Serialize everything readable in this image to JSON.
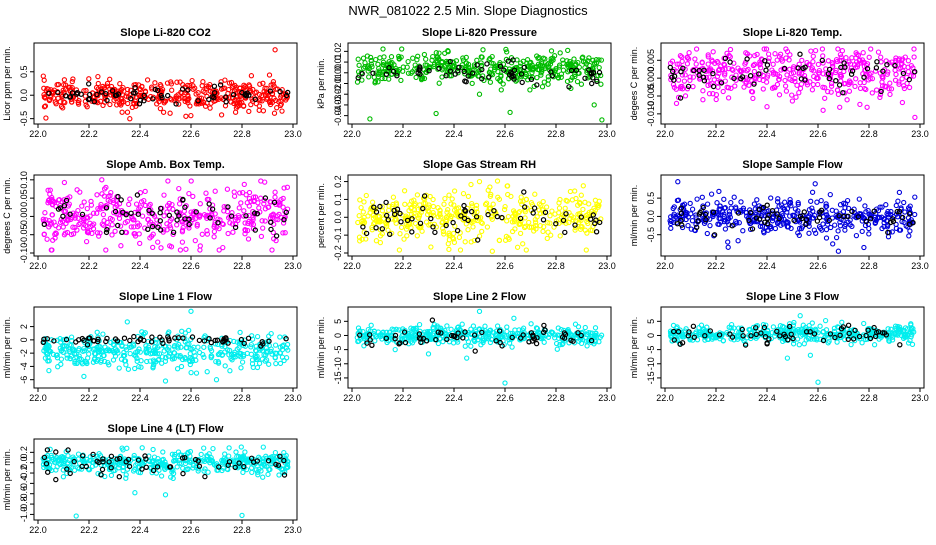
{
  "page_title": "NWR_081022  2.5 Min. Slope Diagnostics",
  "chart_data": [
    {
      "type": "scatter",
      "title": "Slope Li-820 CO2",
      "ylabel": "Licor ppm per min.",
      "xlim": [
        22.0,
        23.0
      ],
      "xticks": [
        "22.0",
        "22.2",
        "22.4",
        "22.6",
        "22.8",
        "23.0"
      ],
      "ylim": [
        -0.55,
        1.05
      ],
      "yticks": [
        -0.5,
        0.0,
        0.5
      ],
      "ytick_labels": [
        "-0.5",
        "0.0",
        "0.5"
      ],
      "color": "#ff0000",
      "center": 0.0,
      "spread": 0.15,
      "n": 420,
      "dark_center": 0.0,
      "dark_spread": 0.1,
      "dark_n": 60,
      "outliers": [
        [
          22.93,
          0.97
        ],
        [
          22.36,
          -0.5
        ],
        [
          22.58,
          -0.45
        ],
        [
          22.72,
          -0.42
        ]
      ]
    },
    {
      "type": "scatter",
      "title": "Slope Li-820 Pressure",
      "ylabel": "kPa per min.",
      "xlim": [
        22.0,
        23.0
      ],
      "xticks": [
        "22.0",
        "22.2",
        "22.4",
        "22.6",
        "22.8",
        "23.0"
      ],
      "ylim": [
        -0.045,
        0.025
      ],
      "yticks": [
        -0.04,
        -0.03,
        -0.02,
        -0.01,
        0.0,
        0.01,
        0.02
      ],
      "ytick_labels": [
        "-0.04",
        "-0.03",
        "-0.02",
        "-0.01",
        "0.00",
        "0.01",
        "0.02"
      ],
      "color": "#00bb00",
      "center": 0.004,
      "spread": 0.007,
      "n": 420,
      "dark_center": 0.0,
      "dark_spread": 0.005,
      "dark_n": 60,
      "outliers": [
        [
          22.07,
          -0.043
        ],
        [
          22.33,
          -0.038
        ],
        [
          22.62,
          -0.037
        ],
        [
          22.98,
          -0.044
        ],
        [
          22.95,
          -0.03
        ],
        [
          22.5,
          -0.02
        ]
      ]
    },
    {
      "type": "scatter",
      "title": "Slope Li-820 Temp.",
      "ylabel": "degees C per min.",
      "xlim": [
        22.0,
        23.0
      ],
      "xticks": [
        "22.0",
        "22.2",
        "22.4",
        "22.6",
        "22.8",
        "23.0"
      ],
      "ylim": [
        -0.012,
        0.009
      ],
      "yticks": [
        -0.01,
        -0.005,
        0.0,
        0.005
      ],
      "ytick_labels": [
        "-0.010",
        "-0.005",
        "0.000",
        "0.005"
      ],
      "color": "#ff00ff",
      "center": 0.001,
      "spread": 0.0035,
      "n": 420,
      "dark_center": 0.0015,
      "dark_spread": 0.0025,
      "dark_n": 60,
      "outliers": [
        [
          22.98,
          -0.011
        ],
        [
          22.62,
          -0.009
        ],
        [
          22.4,
          -0.008
        ]
      ]
    },
    {
      "type": "scatter",
      "title": "Slope Amb. Box Temp.",
      "ylabel": "degrees C per min.",
      "xlim": [
        22.0,
        23.0
      ],
      "xticks": [
        "22.0",
        "22.2",
        "22.4",
        "22.6",
        "22.8",
        "23.0"
      ],
      "ylim": [
        -0.1,
        0.105
      ],
      "yticks": [
        -0.1,
        -0.05,
        0.0,
        0.05,
        0.1
      ],
      "ytick_labels": [
        "-0.10",
        "-0.05",
        "0.00",
        "0.05",
        "0.10"
      ],
      "color": "#ff00ff",
      "center": 0.0,
      "spread": 0.04,
      "n": 420,
      "dark_center": 0.0,
      "dark_spread": 0.03,
      "dark_n": 60,
      "outliers": [
        [
          22.25,
          0.1
        ],
        [
          22.58,
          -0.09
        ]
      ]
    },
    {
      "type": "scatter",
      "title": "Slope Gas Stream RH",
      "ylabel": "percent per min.",
      "xlim": [
        22.0,
        23.0
      ],
      "xticks": [
        "22.0",
        "22.2",
        "22.4",
        "22.6",
        "22.8",
        "23.0"
      ],
      "ylim": [
        -0.2,
        0.22
      ],
      "yticks": [
        -0.2,
        -0.1,
        0.0,
        0.1,
        0.2
      ],
      "ytick_labels": [
        "-0.2",
        "-0.1",
        "0.0",
        "0.1",
        "0.2"
      ],
      "color": "#ffff00",
      "center": 0.0,
      "spread": 0.07,
      "n": 420,
      "dark_center": 0.0,
      "dark_spread": 0.05,
      "dark_n": 60,
      "outliers": [
        [
          22.5,
          0.2
        ],
        [
          22.38,
          -0.18
        ],
        [
          22.55,
          -0.19
        ]
      ]
    },
    {
      "type": "scatter",
      "title": "Slope Sample Flow",
      "ylabel": "ml/min per min.",
      "xlim": [
        22.0,
        23.0
      ],
      "xticks": [
        "22.0",
        "22.2",
        "22.4",
        "22.6",
        "22.8",
        "23.0"
      ],
      "ylim": [
        -1.0,
        1.05
      ],
      "yticks": [
        -0.5,
        0.0,
        0.5
      ],
      "ytick_labels": [
        "-0.5",
        "0.0",
        "0.5"
      ],
      "color": "#0000dd",
      "center": 0.0,
      "spread": 0.25,
      "n": 420,
      "dark_center": -0.05,
      "dark_spread": 0.18,
      "dark_n": 60,
      "outliers": [
        [
          22.05,
          0.95
        ],
        [
          22.78,
          -0.85
        ],
        [
          22.68,
          -0.95
        ]
      ]
    },
    {
      "type": "scatter",
      "title": "Slope Line 1 Flow",
      "ylabel": "ml/min per min.",
      "xlim": [
        22.0,
        23.0
      ],
      "xticks": [
        "22.0",
        "22.2",
        "22.4",
        "22.6",
        "22.8",
        "23.0"
      ],
      "ylim": [
        -6.8,
        4.5
      ],
      "yticks": [
        -6,
        -4,
        -2,
        0,
        2
      ],
      "ytick_labels": [
        "-6",
        "-4",
        "-2",
        "0",
        "2"
      ],
      "color": "#00eeee",
      "center": -1.8,
      "spread": 1.3,
      "n": 420,
      "dark_center": 0.0,
      "dark_spread": 0.3,
      "dark_n": 60,
      "outliers": [
        [
          22.6,
          4.3
        ],
        [
          22.35,
          2.7
        ],
        [
          22.18,
          -5.5
        ],
        [
          22.5,
          -6.2
        ],
        [
          22.7,
          -6.0
        ]
      ]
    },
    {
      "type": "scatter",
      "title": "Slope Line 2 Flow",
      "ylabel": "ml/min per min.",
      "xlim": [
        22.0,
        23.0
      ],
      "xticks": [
        "22.0",
        "22.2",
        "22.4",
        "22.6",
        "22.8",
        "23.0"
      ],
      "ylim": [
        -17.5,
        9
      ],
      "yticks": [
        -15,
        -10,
        -5,
        0,
        5
      ],
      "ytick_labels": [
        "-15",
        "-10",
        "-5",
        "0",
        "5"
      ],
      "color": "#00eeee",
      "center": 0.0,
      "spread": 1.6,
      "n": 420,
      "dark_center": -0.5,
      "dark_spread": 1.8,
      "dark_n": 60,
      "outliers": [
        [
          22.5,
          8.5
        ],
        [
          22.6,
          -16.8
        ],
        [
          22.3,
          -6.5
        ],
        [
          22.45,
          -8
        ]
      ]
    },
    {
      "type": "scatter",
      "title": "Slope Line 3 Flow",
      "ylabel": "ml/min per min.",
      "xlim": [
        22.0,
        23.0
      ],
      "xticks": [
        "22.0",
        "22.2",
        "22.4",
        "22.6",
        "22.8",
        "23.0"
      ],
      "ylim": [
        -17.5,
        9
      ],
      "yticks": [
        -15,
        -10,
        -5,
        0,
        5
      ],
      "ytick_labels": [
        "-15",
        "-10",
        "-5",
        "0",
        "5"
      ],
      "color": "#00eeee",
      "center": 0.5,
      "spread": 1.6,
      "n": 420,
      "dark_center": 0.0,
      "dark_spread": 1.6,
      "dark_n": 60,
      "outliers": [
        [
          22.6,
          -16.5
        ],
        [
          22.53,
          7
        ],
        [
          22.48,
          -8
        ],
        [
          22.57,
          -7
        ]
      ]
    },
    {
      "type": "scatter",
      "title": "Slope Line 4 (LT) Flow",
      "ylabel": "ml/min per min.",
      "xlim": [
        22.0,
        23.0
      ],
      "xticks": [
        "22.0",
        "22.2",
        "22.4",
        "22.6",
        "22.8",
        "23.0"
      ],
      "ylim": [
        -1.05,
        0.4
      ],
      "yticks": [
        -1.0,
        -0.8,
        -0.6,
        -0.4,
        -0.2,
        0.0,
        0.2
      ],
      "ytick_labels": [
        "-1.0",
        "-0.8",
        "-0.6",
        "-0.4",
        "-0.2",
        "0.0",
        "0.2"
      ],
      "color": "#00eeee",
      "center": 0.0,
      "spread": 0.11,
      "n": 420,
      "dark_center": -0.02,
      "dark_spread": 0.12,
      "dark_n": 60,
      "outliers": [
        [
          22.15,
          -1.03
        ],
        [
          22.8,
          -1.02
        ],
        [
          22.5,
          -0.62
        ],
        [
          22.38,
          -0.58
        ]
      ]
    }
  ]
}
